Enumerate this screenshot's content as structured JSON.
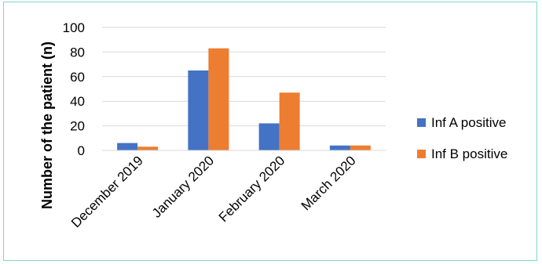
{
  "chart_data": {
    "type": "bar",
    "categories": [
      "December 2019",
      "January 2020",
      "February 2020",
      "March 2020"
    ],
    "series": [
      {
        "name": "Inf A positive",
        "values": [
          6,
          65,
          22,
          4
        ],
        "color": "#4472c4"
      },
      {
        "name": "Inf B positive",
        "values": [
          3,
          83,
          47,
          4
        ],
        "color": "#ed7d31"
      }
    ],
    "ylabel": "Number of the patient (n)",
    "xlabel": "",
    "ylim": [
      0,
      100
    ],
    "yticks": [
      0,
      20,
      40,
      60,
      80,
      100
    ],
    "grid": true,
    "legend_position": "right"
  }
}
